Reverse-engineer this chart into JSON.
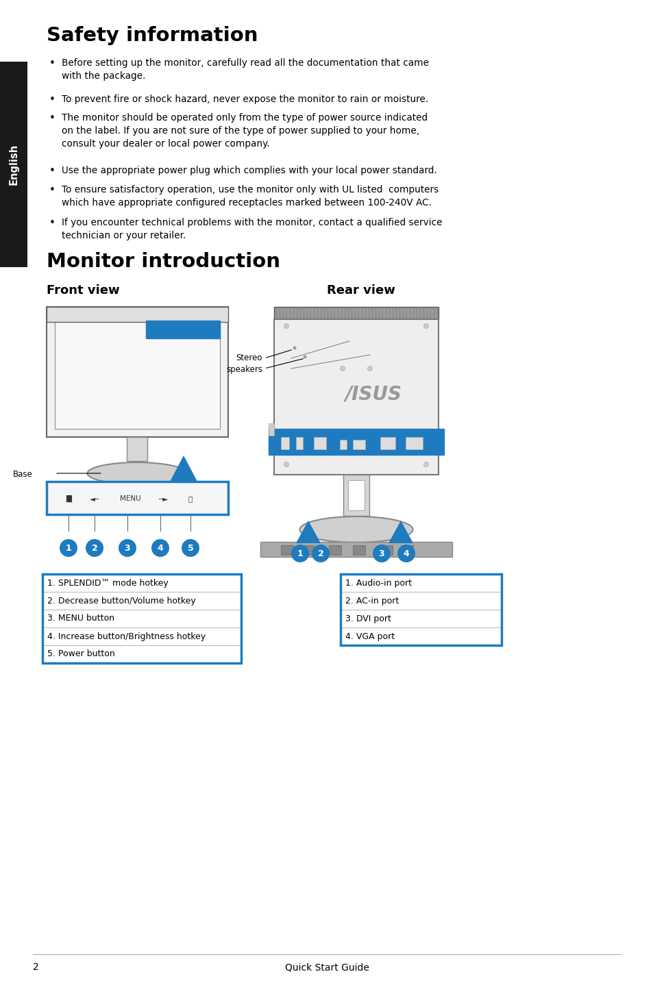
{
  "bg_color": "#ffffff",
  "sidebar_color": "#1a1a1a",
  "sidebar_text": "English",
  "sidebar_text_color": "#ffffff",
  "title1": "Safety information",
  "title2": "Monitor introduction",
  "subtitle_front": "Front view",
  "subtitle_rear": "Rear view",
  "safety_items": [
    "Before setting up the monitor, carefully read all the documentation that came\nwith the package.",
    "To prevent fire or shock hazard, never expose the monitor to rain or moisture.",
    "The monitor should be operated only from the type of power source indicated\non the label. If you are not sure of the type of power supplied to your home,\nconsult your dealer or local power company.",
    "Use the appropriate power plug which complies with your local power standard.",
    "To ensure satisfactory operation, use the monitor only with UL listed  computers\nwhich have appropriate configured receptacles marked between 100-240V AC.",
    "If you encounter technical problems with the monitor, contact a qualified service\ntechnician or your retailer."
  ],
  "front_labels": [
    "1. SPLENDID™ mode hotkey",
    "2. Decrease button/Volume hotkey",
    "3. MENU button",
    "4. Increase button/Brightness hotkey",
    "5. Power button"
  ],
  "rear_labels": [
    "1. Audio-in port",
    "2. AC-in port",
    "3. DVI port",
    "4. VGA port"
  ],
  "blue_color": "#1e7bbf",
  "table_border_color": "#1e7bbf",
  "table_line_color": "#bbbbbb",
  "footer_line_color": "#aaaaaa",
  "footer_page": "2",
  "footer_text": "Quick Start Guide",
  "stereo_label": "Stereo\nspeakers",
  "base_label": "Base"
}
